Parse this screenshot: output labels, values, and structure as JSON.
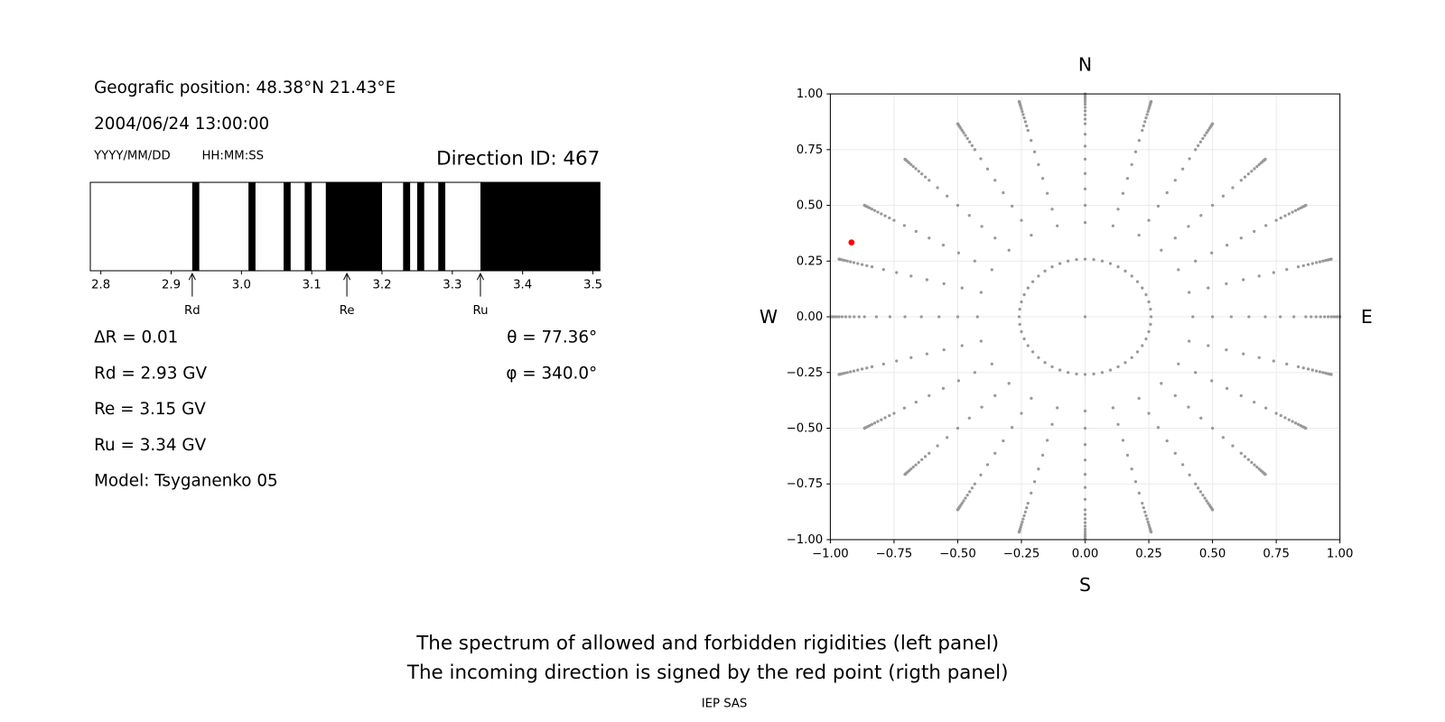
{
  "info": {
    "position": "Geografic position: 48.38°N 21.43°E",
    "datetime": "2004/06/24 13:00:00",
    "date_format": "YYYY/MM/DD",
    "time_format": "HH:MM:SS",
    "direction_id": "Direction ID: 467",
    "delta_r": "ΔR = 0.01",
    "rd": "Rd = 2.93 GV",
    "re": "Re = 3.15 GV",
    "ru": "Ru = 3.34 GV",
    "model": "Model: Tsyganenko 05",
    "theta": "θ = 77.36°",
    "phi": "φ = 340.0°"
  },
  "chart_data": [
    {
      "type": "spectrum",
      "color": "#000000",
      "xlim": [
        2.785,
        3.51
      ],
      "xticks": [
        2.8,
        2.9,
        {
          "value": 3,
          "label": "3.0"
        },
        3.1,
        3.2,
        3.3,
        3.4,
        3.5
      ],
      "forbidden": [
        [
          2.93,
          2.94
        ],
        [
          3.01,
          3.02
        ],
        [
          3.06,
          3.07
        ],
        [
          3.09,
          3.1
        ],
        [
          3.12,
          3.2
        ],
        [
          3.23,
          3.24
        ],
        [
          3.25,
          3.26
        ],
        [
          3.28,
          3.29
        ],
        [
          3.34,
          3.51
        ]
      ],
      "markers": [
        {
          "label": "Rd",
          "value": 2.93
        },
        {
          "label": "Re",
          "value": 3.15
        },
        {
          "label": "Ru",
          "value": 3.34
        }
      ]
    },
    {
      "type": "scatter",
      "color": "#999999",
      "grid": true,
      "xlim": [
        -1,
        1
      ],
      "ylim": [
        -1,
        1
      ],
      "xticks": [
        {
          "value": -1,
          "label": "−1.00"
        },
        {
          "value": -0.75,
          "label": "−0.75"
        },
        {
          "value": -0.5,
          "label": "−0.50"
        },
        {
          "value": -0.25,
          "label": "−0.25"
        },
        {
          "value": 0,
          "label": "0.00"
        },
        {
          "value": 0.25,
          "label": "0.25"
        },
        {
          "value": 0.5,
          "label": "0.50"
        },
        {
          "value": 0.75,
          "label": "0.75"
        },
        {
          "value": 1,
          "label": "1.00"
        }
      ],
      "yticks": [
        {
          "value": -1,
          "label": "−1.00"
        },
        {
          "value": -0.75,
          "label": "−0.75"
        },
        {
          "value": -0.5,
          "label": "−0.50"
        },
        {
          "value": -0.25,
          "label": "−0.25"
        },
        {
          "value": 0,
          "label": "0.00"
        },
        {
          "value": 0.25,
          "label": "0.25"
        },
        {
          "value": 0.5,
          "label": "0.50"
        },
        {
          "value": 0.75,
          "label": "0.75"
        },
        {
          "value": 1,
          "label": "1.00"
        }
      ],
      "groups": [
        {
          "zenith": [
            0
          ],
          "azimuth": [
            0
          ]
        },
        {
          "zenith": [
            15
          ],
          "azimuth": [
            0,
            7.5,
            15,
            22.5,
            30,
            37.5,
            45,
            52.5,
            60,
            67.5,
            75,
            82.5,
            90,
            97.5,
            105,
            112.5,
            120,
            127.5,
            135,
            142.5,
            150,
            157.5,
            165,
            172.5,
            180,
            187.5,
            195,
            202.5,
            210,
            217.5,
            225,
            232.5,
            240,
            247.5,
            255,
            262.5,
            270,
            277.5,
            285,
            292.5,
            300,
            307.5,
            315,
            322.5,
            330,
            337.5,
            345,
            352.5
          ]
        },
        {
          "zenith": [
            25,
            30,
            35,
            40,
            45,
            50,
            55,
            60,
            62.5,
            65,
            67.5,
            70,
            72.5,
            75,
            77.5,
            80,
            82.5,
            85,
            87.5,
            90
          ],
          "azimuth": [
            0,
            15,
            30,
            45,
            60,
            75,
            90,
            105,
            120,
            135,
            150,
            165,
            180,
            195,
            210,
            225,
            240,
            255,
            270,
            285,
            300,
            315,
            330,
            345
          ]
        }
      ],
      "highlight": {
        "zenith": 77.36,
        "azimuth": 340.0,
        "color": "#ff0000"
      },
      "compass": {
        "top": "N",
        "bottom": "S",
        "left": "W",
        "right": "E"
      }
    }
  ],
  "caption": [
    "The spectrum of allowed and forbidden rigidities (left panel)",
    "The incoming direction is signed by the red point (rigth panel)"
  ],
  "credit": "IEP SAS"
}
